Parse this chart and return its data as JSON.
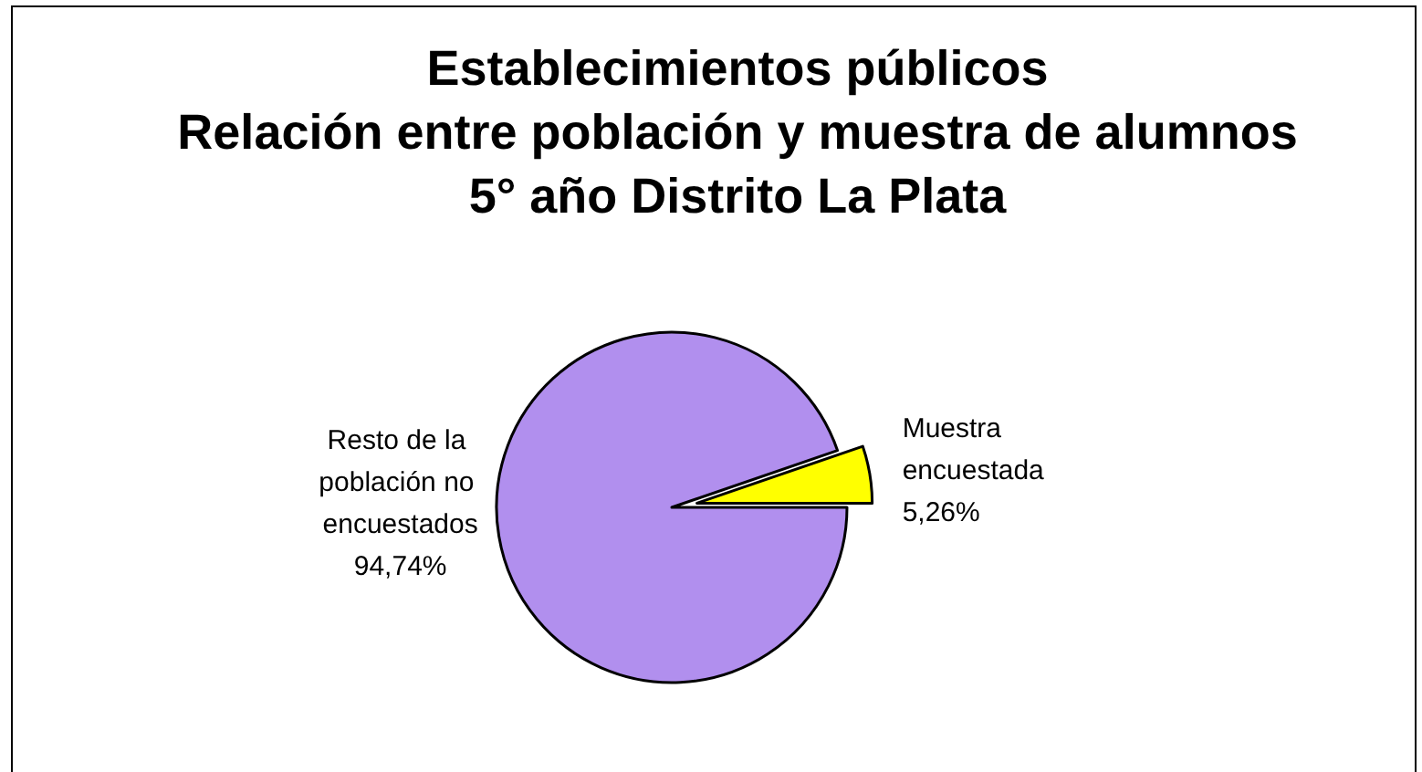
{
  "chart_data": {
    "type": "pie",
    "title": "Establecimientos públicos\nRelación entre población y muestra de alumnos\n5° año Distrito La Plata",
    "categories": [
      "Muestra encuestada",
      "Resto de la población no encuestados"
    ],
    "values": [
      5.26,
      94.74
    ],
    "colors": [
      "#ffff00",
      "#b18fee"
    ],
    "value_labels": [
      "5,26%",
      "94,74%"
    ],
    "legend": false
  }
}
